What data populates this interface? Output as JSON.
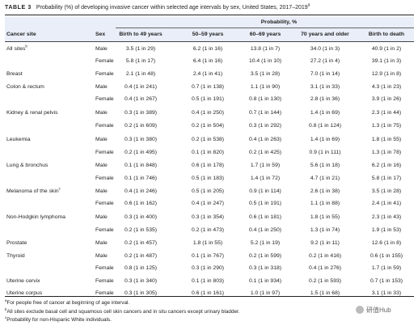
{
  "caption": {
    "label": "TABLE 3",
    "text": "Probability (%) of developing invasive cancer within selected age intervals by sex, United States, 2017–2019",
    "note_marker": "a"
  },
  "header": {
    "group_label": "Probability, %",
    "columns": [
      "Cancer site",
      "Sex",
      "Birth to 49 years",
      "50–59 years",
      "60–69 years",
      "70 years and older",
      "Birth to death"
    ]
  },
  "rows": [
    {
      "site": "All sites",
      "site_marker": "b",
      "sex": "Male",
      "values": [
        "3.5 (1 in 29)",
        "6.2 (1 in 16)",
        "13.8 (1 in 7)",
        "34.0 (1 in 3)",
        "40.9 (1 in 2)"
      ]
    },
    {
      "site": "",
      "site_marker": "",
      "sex": "Female",
      "values": [
        "5.8 (1 in 17)",
        "6.4 (1 in 16)",
        "10.4 (1 in 10)",
        "27.2 (1 in 4)",
        "39.1 (1 in 3)"
      ]
    },
    {
      "site": "Breast",
      "site_marker": "",
      "sex": "Female",
      "values": [
        "2.1 (1 in 48)",
        "2.4 (1 in 41)",
        "3.5 (1 in 28)",
        "7.0 (1 in 14)",
        "12.9 (1 in 8)"
      ]
    },
    {
      "site": "Colon & rectum",
      "site_marker": "",
      "sex": "Male",
      "values": [
        "0.4 (1 in 241)",
        "0.7 (1 in 138)",
        "1.1 (1 in 90)",
        "3.1 (1 in 33)",
        "4.3 (1 in 23)"
      ]
    },
    {
      "site": "",
      "site_marker": "",
      "sex": "Female",
      "values": [
        "0.4 (1 in 267)",
        "0.5 (1 in 191)",
        "0.8 (1 in 130)",
        "2.8 (1 in 36)",
        "3.9 (1 in 26)"
      ]
    },
    {
      "site": "Kidney & renal pelvis",
      "site_marker": "",
      "sex": "Male",
      "values": [
        "0.3 (1 in 389)",
        "0.4 (1 in 250)",
        "0.7 (1 in 144)",
        "1.4 (1 in 69)",
        "2.3 (1 in 44)"
      ]
    },
    {
      "site": "",
      "site_marker": "",
      "sex": "Female",
      "values": [
        "0.2 (1 in 609)",
        "0.2 (1 in 504)",
        "0.3 (1 in 292)",
        "0.8 (1 in 124)",
        "1.3 (1 in 75)"
      ]
    },
    {
      "site": "Leukemia",
      "site_marker": "",
      "sex": "Male",
      "values": [
        "0.3 (1 in 380)",
        "0.2 (1 in 538)",
        "0.4 (1 in 263)",
        "1.4 (1 in 69)",
        "1.8 (1 in 55)"
      ]
    },
    {
      "site": "",
      "site_marker": "",
      "sex": "Female",
      "values": [
        "0.2 (1 in 495)",
        "0.1 (1 in 820)",
        "0.2 (1 in 425)",
        "0.9 (1 in 111)",
        "1.3 (1 in 78)"
      ]
    },
    {
      "site": "Lung & bronchus",
      "site_marker": "",
      "sex": "Male",
      "values": [
        "0.1 (1 in 848)",
        "0.6 (1 in 178)",
        "1.7 (1 in 59)",
        "5.6 (1 in 18)",
        "6.2 (1 in 16)"
      ]
    },
    {
      "site": "",
      "site_marker": "",
      "sex": "Female",
      "values": [
        "0.1 (1 in 746)",
        "0.5 (1 in 183)",
        "1.4 (1 in 72)",
        "4.7 (1 in 21)",
        "5.8 (1 in 17)"
      ]
    },
    {
      "site": "Melanoma of the skin",
      "site_marker": "c",
      "sex": "Male",
      "values": [
        "0.4 (1 in 246)",
        "0.5 (1 in 205)",
        "0.9 (1 in 114)",
        "2.6 (1 in 38)",
        "3.5 (1 in 28)"
      ]
    },
    {
      "site": "",
      "site_marker": "",
      "sex": "Female",
      "values": [
        "0.6 (1 in 162)",
        "0.4 (1 in 247)",
        "0.5 (1 in 191)",
        "1.1 (1 in 88)",
        "2.4 (1 in 41)"
      ]
    },
    {
      "site": "Non-Hodgkin lymphoma",
      "site_marker": "",
      "sex": "Male",
      "values": [
        "0.3 (1 in 400)",
        "0.3 (1 in 354)",
        "0.6 (1 in 181)",
        "1.8 (1 in 55)",
        "2.3 (1 in 43)"
      ]
    },
    {
      "site": "",
      "site_marker": "",
      "sex": "Female",
      "values": [
        "0.2 (1 in 535)",
        "0.2 (1 in 473)",
        "0.4 (1 in 250)",
        "1.3 (1 in 74)",
        "1.9 (1 in 53)"
      ]
    },
    {
      "site": "Prostate",
      "site_marker": "",
      "sex": "Male",
      "values": [
        "0.2 (1 in 457)",
        "1.8 (1 in 55)",
        "5.2 (1 in 19)",
        "9.2 (1 in 11)",
        "12.6 (1 in 8)"
      ]
    },
    {
      "site": "Thyroid",
      "site_marker": "",
      "sex": "Male",
      "values": [
        "0.2 (1 in 487)",
        "0.1 (1 in 767)",
        "0.2 (1 in 599)",
        "0.2 (1 in 416)",
        "0.6 (1 in 155)"
      ]
    },
    {
      "site": "",
      "site_marker": "",
      "sex": "Female",
      "values": [
        "0.8 (1 in 125)",
        "0.3 (1 in 290)",
        "0.3 (1 in 318)",
        "0.4 (1 in 276)",
        "1.7 (1 in 59)"
      ]
    },
    {
      "site": "Uterine cervix",
      "site_marker": "",
      "sex": "Female",
      "values": [
        "0.3 (1 in 340)",
        "0.1 (1 in 803)",
        "0.1 (1 in 934)",
        "0.2 (1 in 593)",
        "0.7 (1 in 153)"
      ]
    },
    {
      "site": "Uterine corpus",
      "site_marker": "",
      "sex": "Female",
      "values": [
        "0.3 (1 in 305)",
        "0.6 (1 in 161)",
        "1.0 (1 in 97)",
        "1.5 (1 in 68)",
        "3.1 (1 in 33)"
      ]
    }
  ],
  "footnotes": [
    {
      "marker": "a",
      "text": "For people free of cancer at beginning of age interval."
    },
    {
      "marker": "b",
      "text": "All sites exclude basal cell and squamous cell skin cancers and in situ cancers except urinary bladder."
    },
    {
      "marker": "c",
      "text": "Probability for non-Hispanic White individuals."
    }
  ],
  "watermark": {
    "icon": "wechat-icon",
    "text": "研值Hub"
  }
}
